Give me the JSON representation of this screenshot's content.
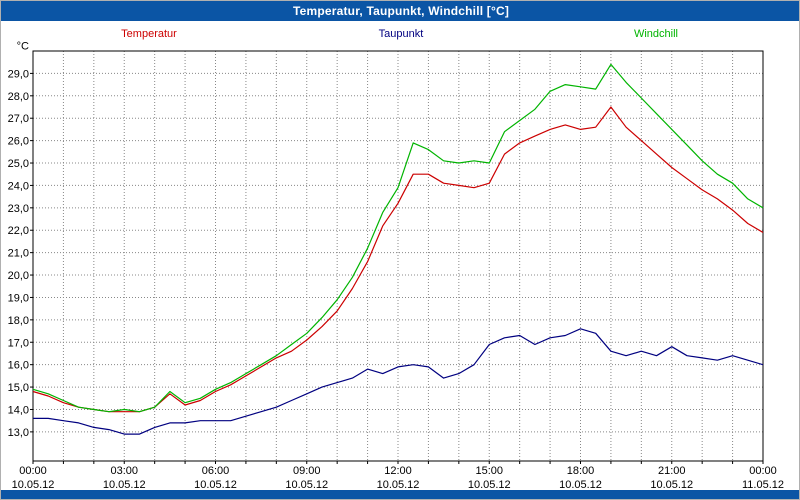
{
  "window": {
    "title": "Temperatur, Taupunkt, Windchill [°C]",
    "titlebar_color": "#0b55a5"
  },
  "chart_data": {
    "type": "line",
    "title": "Temperatur, Taupunkt, Windchill [°C]",
    "unit_label": "°C",
    "xlim_hours": [
      0,
      24
    ],
    "ylim": [
      11.7,
      30.0
    ],
    "x_step_hours": 0.5,
    "grid": "dotted, every 1 hour vertical, every 1 °C horizontal",
    "legend_position": "top",
    "y_tick_values": [
      29,
      28,
      27,
      26,
      25,
      24,
      23,
      22,
      21,
      20,
      19,
      18,
      17,
      16,
      15,
      14,
      13
    ],
    "y_tick_labels": [
      "29,0",
      "28,0",
      "27,0",
      "26,0",
      "25,0",
      "24,0",
      "23,0",
      "22,0",
      "21,0",
      "20,0",
      "19,0",
      "18,0",
      "17,0",
      "16,0",
      "15,0",
      "14,0",
      "13,0"
    ],
    "x_ticks": [
      {
        "hour": 0,
        "time": "00:00",
        "date": "10.05.12"
      },
      {
        "hour": 3,
        "time": "03:00",
        "date": "10.05.12"
      },
      {
        "hour": 6,
        "time": "06:00",
        "date": "10.05.12"
      },
      {
        "hour": 9,
        "time": "09:00",
        "date": "10.05.12"
      },
      {
        "hour": 12,
        "time": "12:00",
        "date": "10.05.12"
      },
      {
        "hour": 15,
        "time": "15:00",
        "date": "10.05.12"
      },
      {
        "hour": 18,
        "time": "18:00",
        "date": "10.05.12"
      },
      {
        "hour": 21,
        "time": "21:00",
        "date": "10.05.12"
      },
      {
        "hour": 24,
        "time": "00:00",
        "date": "11.05.12"
      }
    ],
    "series": [
      {
        "name": "Temperatur",
        "color": "#cc0000",
        "values": [
          14.8,
          14.6,
          14.3,
          14.1,
          14.0,
          13.9,
          13.9,
          13.9,
          14.1,
          14.7,
          14.2,
          14.4,
          14.8,
          15.1,
          15.5,
          15.9,
          16.3,
          16.6,
          17.1,
          17.7,
          18.4,
          19.4,
          20.6,
          22.2,
          23.2,
          24.5,
          24.5,
          24.1,
          24.0,
          23.9,
          24.1,
          25.4,
          25.9,
          26.2,
          26.5,
          26.7,
          26.5,
          26.6,
          27.5,
          26.6,
          26.0,
          25.4,
          24.8,
          24.3,
          23.8,
          23.4,
          22.9,
          22.3,
          21.9
        ]
      },
      {
        "name": "Taupunkt",
        "color": "#000080",
        "values": [
          13.6,
          13.6,
          13.5,
          13.4,
          13.2,
          13.1,
          12.9,
          12.9,
          13.2,
          13.4,
          13.4,
          13.5,
          13.5,
          13.5,
          13.7,
          13.9,
          14.1,
          14.4,
          14.7,
          15.0,
          15.2,
          15.4,
          15.8,
          15.6,
          15.9,
          16.0,
          15.9,
          15.4,
          15.6,
          16.0,
          16.9,
          17.2,
          17.3,
          16.9,
          17.2,
          17.3,
          17.6,
          17.4,
          16.6,
          16.4,
          16.6,
          16.4,
          16.8,
          16.4,
          16.3,
          16.2,
          16.4,
          16.2,
          16.0
        ]
      },
      {
        "name": "Windchill",
        "color": "#00b400",
        "values": [
          14.9,
          14.7,
          14.4,
          14.1,
          14.0,
          13.9,
          14.0,
          13.9,
          14.1,
          14.8,
          14.3,
          14.5,
          14.9,
          15.2,
          15.6,
          16.0,
          16.4,
          16.9,
          17.4,
          18.1,
          18.9,
          19.9,
          21.2,
          22.8,
          23.9,
          25.9,
          25.6,
          25.1,
          25.0,
          25.1,
          25.0,
          26.4,
          26.9,
          27.4,
          28.2,
          28.5,
          28.4,
          28.3,
          29.4,
          28.6,
          27.9,
          27.2,
          26.5,
          25.8,
          25.1,
          24.5,
          24.1,
          23.4,
          23.0
        ]
      }
    ]
  },
  "colors": {
    "grid": "#888888",
    "frame": "#000000",
    "axis_text": "#000000",
    "background": "#ffffff"
  }
}
